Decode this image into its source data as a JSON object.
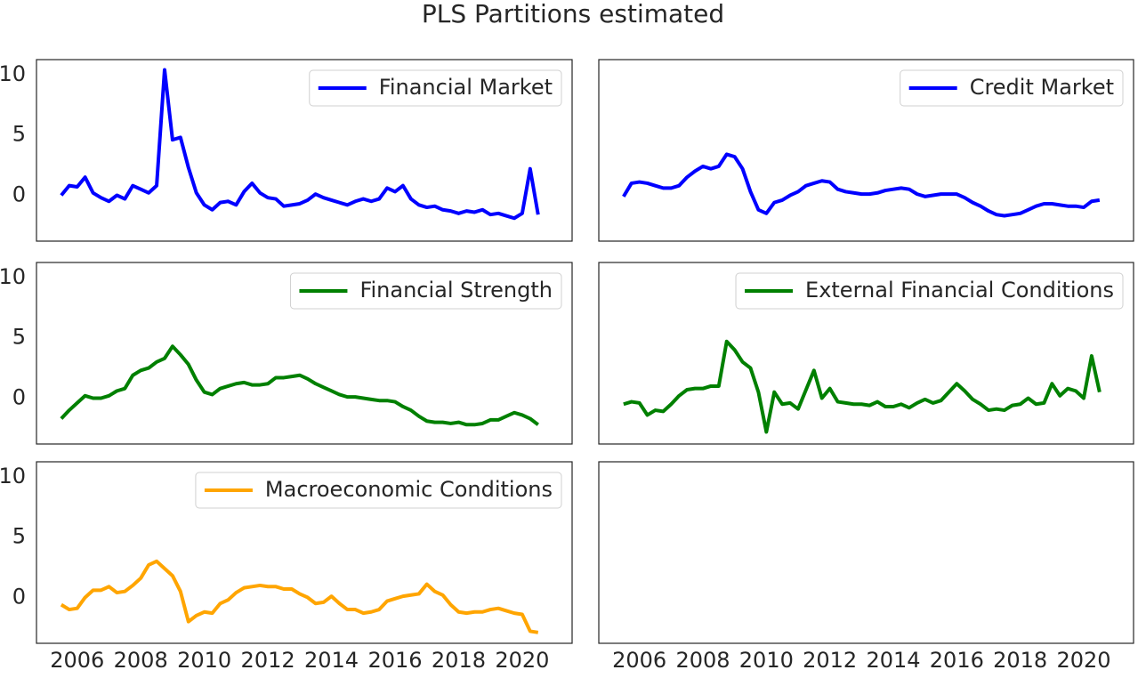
{
  "title": "PLS Partitions estimated",
  "chart_data": [
    {
      "type": "line",
      "legend": "upper right",
      "xlim": [
        2004.72,
        2021.57
      ],
      "ylim": [
        -3.8,
        11.25
      ],
      "yticks": [
        0,
        5,
        10
      ],
      "x": [
        2005.5,
        2005.75,
        2006,
        2006.25,
        2006.5,
        2006.75,
        2007,
        2007.25,
        2007.5,
        2007.75,
        2008,
        2008.25,
        2008.5,
        2008.75,
        2009,
        2009.25,
        2009.5,
        2009.75,
        2010,
        2010.25,
        2010.5,
        2010.75,
        2011,
        2011.25,
        2011.5,
        2011.75,
        2012,
        2012.25,
        2012.5,
        2012.75,
        2013,
        2013.25,
        2013.5,
        2013.75,
        2014,
        2014.25,
        2014.5,
        2014.75,
        2015,
        2015.25,
        2015.5,
        2015.75,
        2016,
        2016.25,
        2016.5,
        2016.75,
        2017,
        2017.25,
        2017.5,
        2017.75,
        2018,
        2018.25,
        2018.5,
        2018.75,
        2019,
        2019.25,
        2019.5,
        2019.75,
        2020,
        2020.25,
        2020.5
      ],
      "series": [
        {
          "name": "Financial Market",
          "color": "#0000ff",
          "values": [
            0,
            0.8,
            0.7,
            1.5,
            0.2,
            -0.2,
            -0.5,
            0,
            -0.3,
            0.8,
            0.5,
            0.2,
            0.8,
            10.4,
            4.6,
            4.8,
            2.3,
            0.2,
            -0.8,
            -1.2,
            -0.6,
            -0.5,
            -0.8,
            0.3,
            1.0,
            0.2,
            -0.2,
            -0.3,
            -0.9,
            -0.8,
            -0.7,
            -0.4,
            0.1,
            -0.2,
            -0.4,
            -0.6,
            -0.8,
            -0.5,
            -0.3,
            -0.5,
            -0.3,
            0.6,
            0.3,
            0.8,
            -0.3,
            -0.8,
            -1.0,
            -0.9,
            -1.2,
            -1.3,
            -1.5,
            -1.3,
            -1.4,
            -1.2,
            -1.6,
            -1.5,
            -1.7,
            -1.9,
            -1.5,
            2.2,
            -1.6
          ]
        }
      ]
    },
    {
      "type": "line",
      "legend": "upper right",
      "xlim": [
        2004.72,
        2021.57
      ],
      "ylim": [
        -3.8,
        11.25
      ],
      "x": [
        2005.5,
        2005.75,
        2006,
        2006.25,
        2006.5,
        2006.75,
        2007,
        2007.25,
        2007.5,
        2007.75,
        2008,
        2008.25,
        2008.5,
        2008.75,
        2009,
        2009.25,
        2009.5,
        2009.75,
        2010,
        2010.25,
        2010.5,
        2010.75,
        2011,
        2011.25,
        2011.5,
        2011.75,
        2012,
        2012.25,
        2012.5,
        2012.75,
        2013,
        2013.25,
        2013.5,
        2013.75,
        2014,
        2014.25,
        2014.5,
        2014.75,
        2015,
        2015.25,
        2015.5,
        2015.75,
        2016,
        2016.25,
        2016.5,
        2016.75,
        2017,
        2017.25,
        2017.5,
        2017.75,
        2018,
        2018.25,
        2018.5,
        2018.75,
        2019,
        2019.25,
        2019.5,
        2019.75,
        2020,
        2020.25,
        2020.5
      ],
      "series": [
        {
          "name": "Credit Market",
          "color": "#0000ff",
          "values": [
            -0.1,
            1.0,
            1.1,
            1.0,
            0.8,
            0.6,
            0.6,
            0.8,
            1.5,
            2.0,
            2.4,
            2.2,
            2.4,
            3.4,
            3.2,
            2.2,
            0.3,
            -1.2,
            -1.5,
            -0.6,
            -0.4,
            0,
            0.3,
            0.8,
            1.0,
            1.2,
            1.1,
            0.5,
            0.3,
            0.2,
            0.1,
            0.1,
            0.2,
            0.4,
            0.5,
            0.6,
            0.5,
            0.1,
            -0.1,
            0,
            0.1,
            0.1,
            0.1,
            -0.2,
            -0.6,
            -0.9,
            -1.3,
            -1.6,
            -1.7,
            -1.6,
            -1.5,
            -1.2,
            -0.9,
            -0.7,
            -0.7,
            -0.8,
            -0.9,
            -0.9,
            -1.0,
            -0.5,
            -0.4
          ]
        }
      ]
    },
    {
      "type": "line",
      "legend": "upper right",
      "xlim": [
        2004.72,
        2021.57
      ],
      "ylim": [
        -3.8,
        11.25
      ],
      "yticks": [
        0,
        5,
        10
      ],
      "x": [
        2005.5,
        2005.75,
        2006,
        2006.25,
        2006.5,
        2006.75,
        2007,
        2007.25,
        2007.5,
        2007.75,
        2008,
        2008.25,
        2008.5,
        2008.75,
        2009,
        2009.25,
        2009.5,
        2009.75,
        2010,
        2010.25,
        2010.5,
        2010.75,
        2011,
        2011.25,
        2011.5,
        2011.75,
        2012,
        2012.25,
        2012.5,
        2012.75,
        2013,
        2013.25,
        2013.5,
        2013.75,
        2014,
        2014.25,
        2014.5,
        2014.75,
        2015,
        2015.25,
        2015.5,
        2015.75,
        2016,
        2016.25,
        2016.5,
        2016.75,
        2017,
        2017.25,
        2017.5,
        2017.75,
        2018,
        2018.25,
        2018.5,
        2018.75,
        2019,
        2019.25,
        2019.5,
        2019.75,
        2020,
        2020.25,
        2020.5
      ],
      "series": [
        {
          "name": "Financial Strength",
          "color": "#008000",
          "values": [
            -1.7,
            -1.0,
            -0.4,
            0.2,
            0,
            0,
            0.2,
            0.6,
            0.8,
            1.9,
            2.3,
            2.5,
            3.0,
            3.3,
            4.3,
            3.6,
            2.8,
            1.5,
            0.5,
            0.3,
            0.8,
            1.0,
            1.2,
            1.3,
            1.1,
            1.1,
            1.2,
            1.7,
            1.7,
            1.8,
            1.9,
            1.6,
            1.2,
            0.9,
            0.6,
            0.3,
            0.1,
            0.1,
            0,
            -0.1,
            -0.2,
            -0.2,
            -0.3,
            -0.7,
            -1.0,
            -1.5,
            -1.9,
            -2.0,
            -2.0,
            -2.1,
            -2.0,
            -2.2,
            -2.2,
            -2.1,
            -1.8,
            -1.8,
            -1.5,
            -1.2,
            -1.4,
            -1.7,
            -2.2
          ]
        }
      ]
    },
    {
      "type": "line",
      "legend": "upper right",
      "xlim": [
        2004.72,
        2021.57
      ],
      "ylim": [
        -3.8,
        11.25
      ],
      "x": [
        2005.5,
        2005.75,
        2006,
        2006.25,
        2006.5,
        2006.75,
        2007,
        2007.25,
        2007.5,
        2007.75,
        2008,
        2008.25,
        2008.5,
        2008.75,
        2009,
        2009.25,
        2009.5,
        2009.75,
        2010,
        2010.25,
        2010.5,
        2010.75,
        2011,
        2011.25,
        2011.5,
        2011.75,
        2012,
        2012.25,
        2012.5,
        2012.75,
        2013,
        2013.25,
        2013.5,
        2013.75,
        2014,
        2014.25,
        2014.5,
        2014.75,
        2015,
        2015.25,
        2015.5,
        2015.75,
        2016,
        2016.25,
        2016.5,
        2016.75,
        2017,
        2017.25,
        2017.5,
        2017.75,
        2018,
        2018.25,
        2018.5,
        2018.75,
        2019,
        2019.25,
        2019.5,
        2019.75,
        2020,
        2020.25,
        2020.5
      ],
      "series": [
        {
          "name": "External Financial Conditions",
          "color": "#008000",
          "values": [
            -0.5,
            -0.3,
            -0.4,
            -1.4,
            -1.0,
            -1.1,
            -0.5,
            0.2,
            0.7,
            0.8,
            0.8,
            1.0,
            1.0,
            4.7,
            4.0,
            3.0,
            2.5,
            0.5,
            -2.8,
            0.5,
            -0.5,
            -0.4,
            -0.9,
            0.7,
            2.3,
            0,
            0.8,
            -0.3,
            -0.4,
            -0.5,
            -0.5,
            -0.6,
            -0.3,
            -0.7,
            -0.7,
            -0.5,
            -0.8,
            -0.4,
            -0.1,
            -0.4,
            -0.2,
            0.5,
            1.2,
            0.6,
            -0.1,
            -0.5,
            -1.0,
            -0.9,
            -1.0,
            -0.6,
            -0.5,
            0,
            -0.5,
            -0.4,
            1.2,
            0.2,
            0.8,
            0.6,
            0,
            3.5,
            0.5
          ]
        }
      ]
    },
    {
      "type": "line",
      "legend": "upper right",
      "xlim": [
        2004.72,
        2021.57
      ],
      "ylim": [
        -3.8,
        11.25
      ],
      "yticks": [
        0,
        5,
        10
      ],
      "xticks": [
        2006,
        2008,
        2010,
        2012,
        2014,
        2016,
        2018,
        2020
      ],
      "x": [
        2005.5,
        2005.75,
        2006,
        2006.25,
        2006.5,
        2006.75,
        2007,
        2007.25,
        2007.5,
        2007.75,
        2008,
        2008.25,
        2008.5,
        2008.75,
        2009,
        2009.25,
        2009.5,
        2009.75,
        2010,
        2010.25,
        2010.5,
        2010.75,
        2011,
        2011.25,
        2011.5,
        2011.75,
        2012,
        2012.25,
        2012.5,
        2012.75,
        2013,
        2013.25,
        2013.5,
        2013.75,
        2014,
        2014.25,
        2014.5,
        2014.75,
        2015,
        2015.25,
        2015.5,
        2015.75,
        2016,
        2016.25,
        2016.5,
        2016.75,
        2017,
        2017.25,
        2017.5,
        2017.75,
        2018,
        2018.25,
        2018.5,
        2018.75,
        2019,
        2019.25,
        2019.5,
        2019.75,
        2020,
        2020.25,
        2020.5
      ],
      "series": [
        {
          "name": "Macroeconomic Conditions",
          "color": "#ffa500",
          "values": [
            -0.6,
            -1.0,
            -0.9,
            0,
            0.6,
            0.6,
            0.9,
            0.4,
            0.5,
            1.0,
            1.6,
            2.7,
            3.0,
            2.4,
            1.8,
            0.5,
            -2.0,
            -1.5,
            -1.2,
            -1.3,
            -0.5,
            -0.2,
            0.4,
            0.8,
            0.9,
            1.0,
            0.9,
            0.9,
            0.7,
            0.7,
            0.3,
            0,
            -0.5,
            -0.4,
            0.1,
            -0.5,
            -1.0,
            -1.0,
            -1.3,
            -1.2,
            -1.0,
            -0.3,
            -0.1,
            0.1,
            0.2,
            0.3,
            1.1,
            0.5,
            0.2,
            -0.6,
            -1.2,
            -1.3,
            -1.2,
            -1.2,
            -1.0,
            -0.9,
            -1.1,
            -1.3,
            -1.4,
            -2.8,
            -2.9
          ]
        }
      ]
    },
    {
      "type": "line",
      "xlim": [
        2004.72,
        2021.57
      ],
      "ylim": [
        -3.8,
        11.25
      ],
      "xticks": [
        2006,
        2008,
        2010,
        2012,
        2014,
        2016,
        2018,
        2020
      ],
      "series": []
    }
  ]
}
